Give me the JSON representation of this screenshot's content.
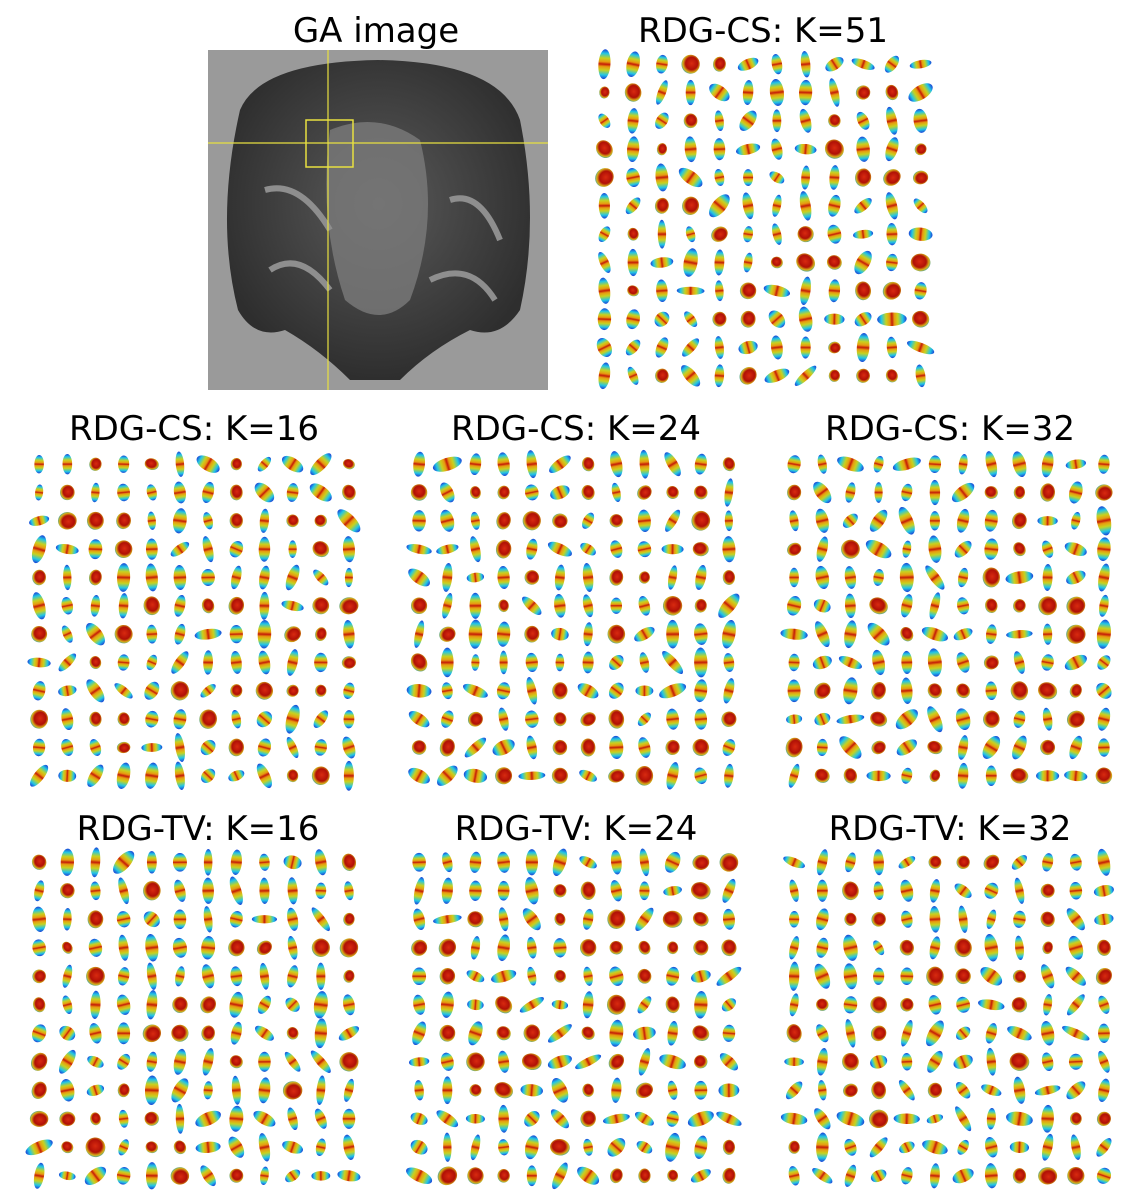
{
  "panels": [
    {
      "title": "GA image"
    },
    {
      "title": "RDG-CS: K=51"
    },
    {
      "title": "RDG-CS: K=16"
    },
    {
      "title": "RDG-CS: K=24"
    },
    {
      "title": "RDG-CS: K=32"
    },
    {
      "title": "RDG-TV: K=16"
    },
    {
      "title": "RDG-TV: K=24"
    },
    {
      "title": "RDG-TV: K=32"
    }
  ]
}
